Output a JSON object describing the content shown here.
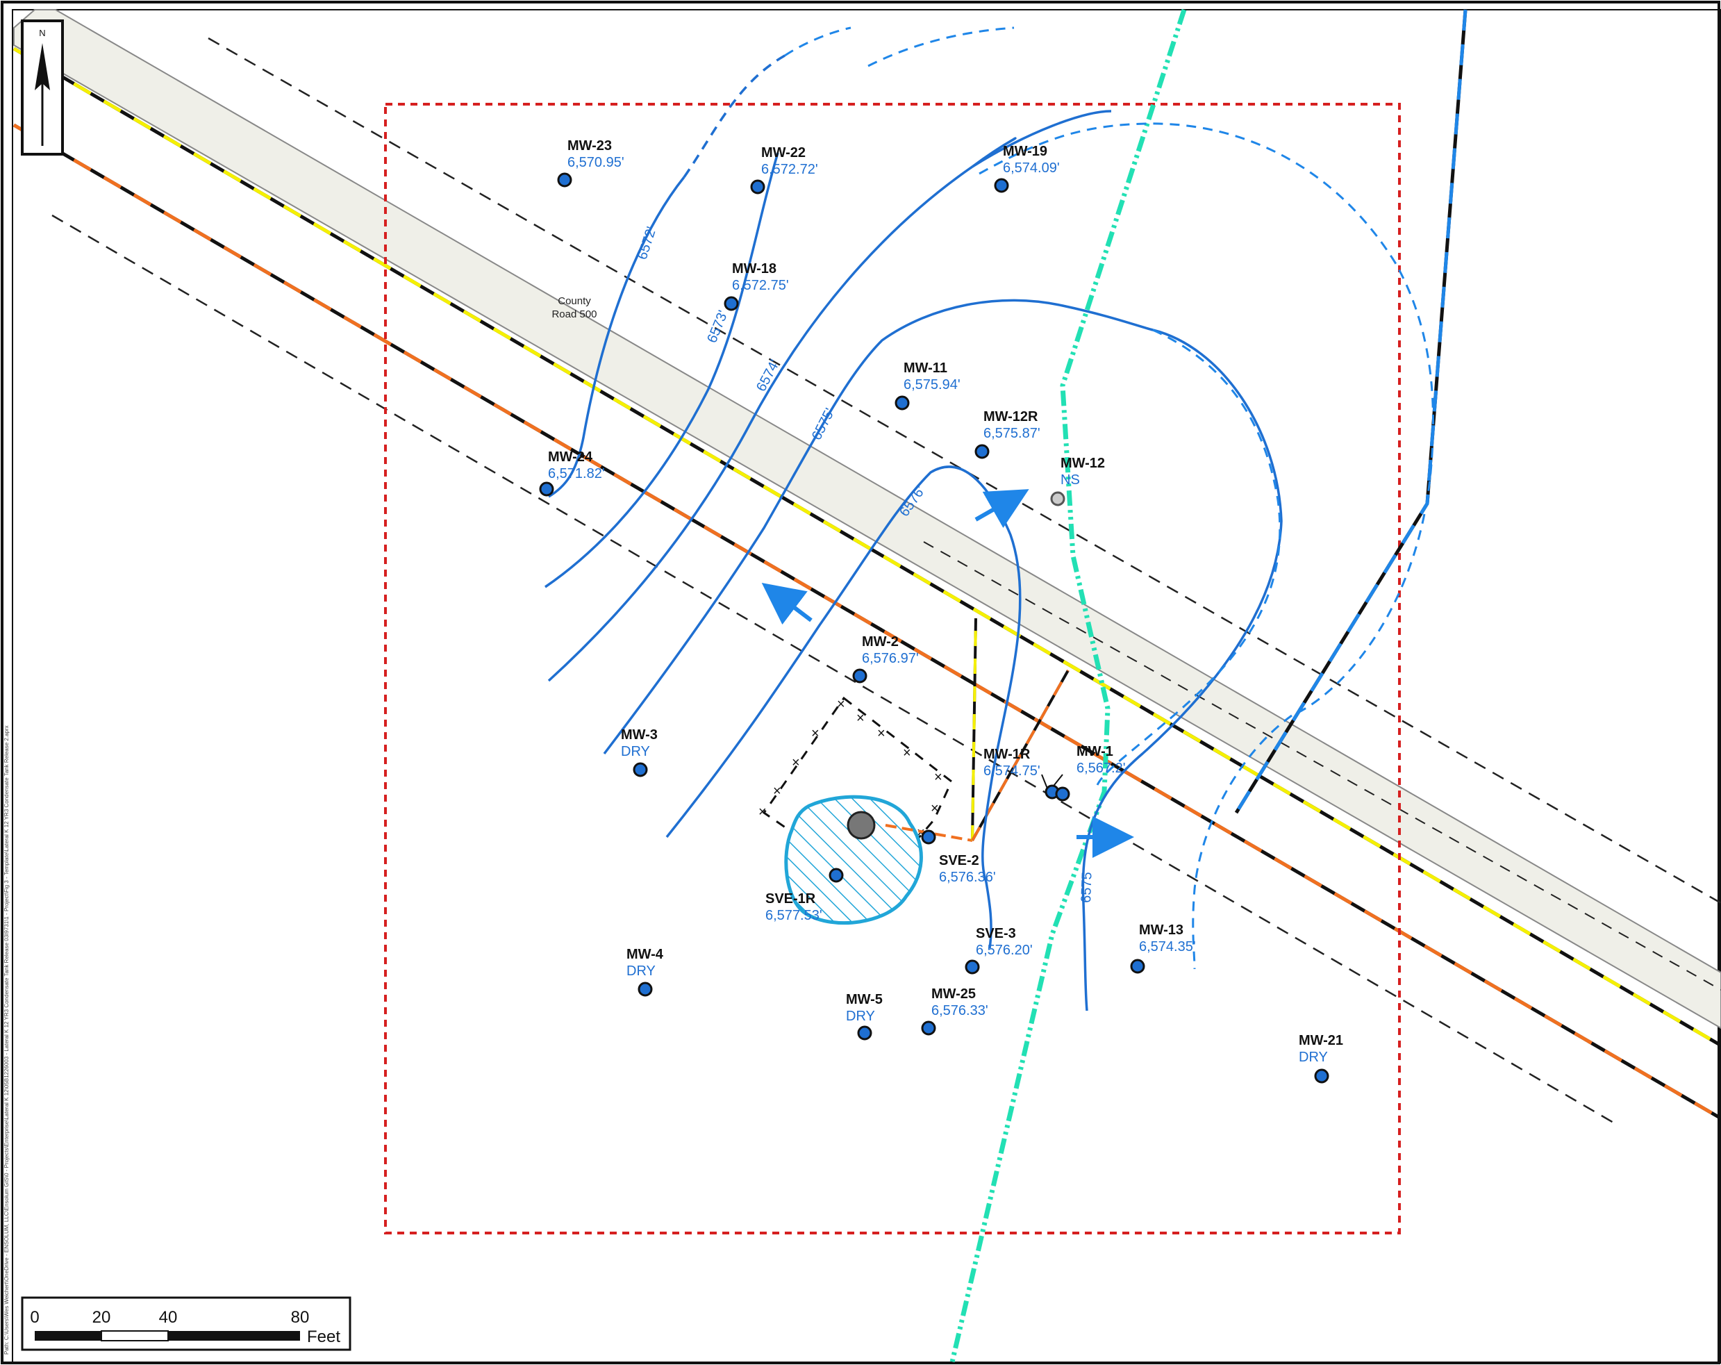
{
  "map": {
    "road_label_line1": "County",
    "road_label_line2": "Road 500",
    "north_arrow_label": "N",
    "file_path_text": "Path: C:\\Users\\Wes Weichert\\OneDrive - ENSOLUM, LLC\\Ensolum GIS\\0 - Projects\\Enterprise\\Lateral K 12\\05B1226003 - Lateral K 12 YR3 Condensate Tank Release 03I9731\\1 - Project\\Fig 3 - Template\\Lateral K 12 YR3 Condensate Tank Release 2.aprx"
  },
  "wells": [
    {
      "id": "MW-23",
      "value": "6,570.95'"
    },
    {
      "id": "MW-22",
      "value": "6,572.72'"
    },
    {
      "id": "MW-19",
      "value": "6,574.09'"
    },
    {
      "id": "MW-18",
      "value": "6,572.75'"
    },
    {
      "id": "MW-11",
      "value": "6,575.94'"
    },
    {
      "id": "MW-12R",
      "value": "6,575.87'"
    },
    {
      "id": "MW-12",
      "value": "NS"
    },
    {
      "id": "MW-24",
      "value": "6,571.82'"
    },
    {
      "id": "MW-2",
      "value": "6,576.97'"
    },
    {
      "id": "MW-3",
      "value": "DRY"
    },
    {
      "id": "MW-1R",
      "value": "6,574.75'"
    },
    {
      "id": "MW-1",
      "value": "6,567.2'"
    },
    {
      "id": "SVE-2",
      "value": "6,576.36'"
    },
    {
      "id": "SVE-1R",
      "value": "6,577.53'"
    },
    {
      "id": "SVE-3",
      "value": "6,576.20'"
    },
    {
      "id": "MW-13",
      "value": "6,574.35'"
    },
    {
      "id": "MW-4",
      "value": "DRY"
    },
    {
      "id": "MW-5",
      "value": "DRY"
    },
    {
      "id": "MW-25",
      "value": "6,576.33'"
    },
    {
      "id": "MW-21",
      "value": "DRY"
    }
  ],
  "contours": {
    "c6572": "6572'",
    "c6573": "6573'",
    "c6574": "6574'",
    "c6575": "6575'",
    "c6576": "6576'",
    "c6575b": "6575"
  },
  "scale_bar": {
    "tick_0": "0",
    "tick_20": "20",
    "tick_40": "40",
    "tick_80": "80",
    "units": "Feet"
  },
  "colors": {
    "contour": "#1f6fd1",
    "site_boundary": "#d62020",
    "pipeline_cyan": "#22e0b4",
    "road_fill": "#efefe8",
    "impacted_area": "#21a6d8",
    "orange_line": "#f07020",
    "yellow_line": "#f5f000"
  }
}
